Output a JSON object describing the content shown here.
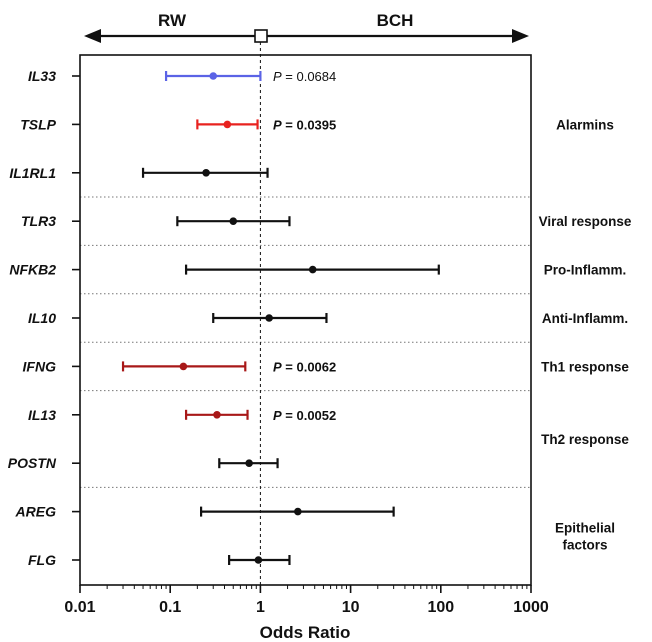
{
  "chart_data": {
    "type": "forest",
    "xlabel": "Odds Ratio",
    "xscale": "log",
    "xlim": [
      0.01,
      1000
    ],
    "reference_x": 1,
    "xticks": [
      0.01,
      0.1,
      1,
      10,
      100,
      1000
    ],
    "xtick_labels": [
      "0.01",
      "0.1",
      "1",
      "10",
      "100",
      "1000"
    ],
    "direction_labels": {
      "left": "RW",
      "right": "BCH"
    },
    "rows": [
      {
        "gene": "IL33",
        "or": 0.3,
        "lo": 0.09,
        "hi": 1.0,
        "color": "#5b63e6",
        "p_prefix": "P",
        "p_value": " = 0.0684",
        "p_bold": false
      },
      {
        "gene": "TSLP",
        "or": 0.43,
        "lo": 0.2,
        "hi": 0.93,
        "color": "#e8221f",
        "p_prefix": "P",
        "p_value": " = 0.0395",
        "p_bold": true
      },
      {
        "gene": "IL1RL1",
        "or": 0.25,
        "lo": 0.05,
        "hi": 1.2,
        "color": "#111111"
      },
      {
        "gene": "TLR3",
        "or": 0.5,
        "lo": 0.12,
        "hi": 2.1,
        "color": "#111111"
      },
      {
        "gene": "NFKB2",
        "or": 3.8,
        "lo": 0.15,
        "hi": 95,
        "color": "#111111"
      },
      {
        "gene": "IL10",
        "or": 1.25,
        "lo": 0.3,
        "hi": 5.4,
        "color": "#111111"
      },
      {
        "gene": "IFNG",
        "or": 0.14,
        "lo": 0.03,
        "hi": 0.68,
        "color": "#a81818",
        "p_prefix": "P",
        "p_value": " = 0.0062",
        "p_bold": true
      },
      {
        "gene": "IL13",
        "or": 0.33,
        "lo": 0.15,
        "hi": 0.72,
        "color": "#a81818",
        "p_prefix": "P",
        "p_value": " = 0.0052",
        "p_bold": true
      },
      {
        "gene": "POSTN",
        "or": 0.75,
        "lo": 0.35,
        "hi": 1.55,
        "color": "#111111"
      },
      {
        "gene": "AREG",
        "or": 2.6,
        "lo": 0.22,
        "hi": 30,
        "color": "#111111"
      },
      {
        "gene": "FLG",
        "or": 0.95,
        "lo": 0.45,
        "hi": 2.1,
        "color": "#111111"
      }
    ],
    "groups": [
      {
        "label": [
          "Alarmins"
        ],
        "rows": [
          0,
          2
        ]
      },
      {
        "label": [
          "Viral response"
        ],
        "rows": [
          3,
          3
        ]
      },
      {
        "label": [
          "Pro-Inflamm."
        ],
        "rows": [
          4,
          4
        ]
      },
      {
        "label": [
          "Anti-Inflamm."
        ],
        "rows": [
          5,
          5
        ]
      },
      {
        "label": [
          "Th1 response"
        ],
        "rows": [
          6,
          6
        ]
      },
      {
        "label": [
          "Th2 response"
        ],
        "rows": [
          7,
          8
        ]
      },
      {
        "label": [
          "Epithelial",
          "factors"
        ],
        "rows": [
          9,
          10
        ]
      }
    ],
    "separators_after_rows": [
      2,
      3,
      4,
      5,
      6,
      8
    ],
    "grid": false,
    "legend": "none"
  }
}
